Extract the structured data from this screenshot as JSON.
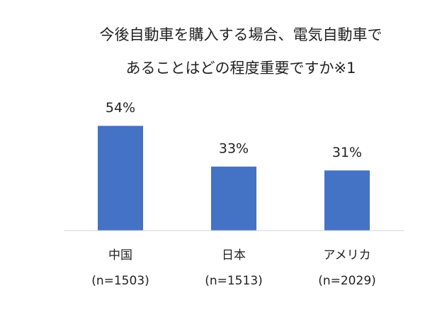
{
  "chart_data": {
    "type": "bar",
    "title": [
      "今後自動車を購入する場合、電気自動車で",
      "あることはどの程度重要ですか※1"
    ],
    "categories": [
      [
        "中国",
        "(n=1503)"
      ],
      [
        "日本",
        "(n=1513)"
      ],
      [
        "アメリカ",
        "(n=2029)"
      ]
    ],
    "values": [
      54,
      33,
      31
    ],
    "value_labels": [
      "54%",
      "33%",
      "31%"
    ],
    "color": "#4472c4",
    "ylim": [
      0,
      60
    ]
  }
}
